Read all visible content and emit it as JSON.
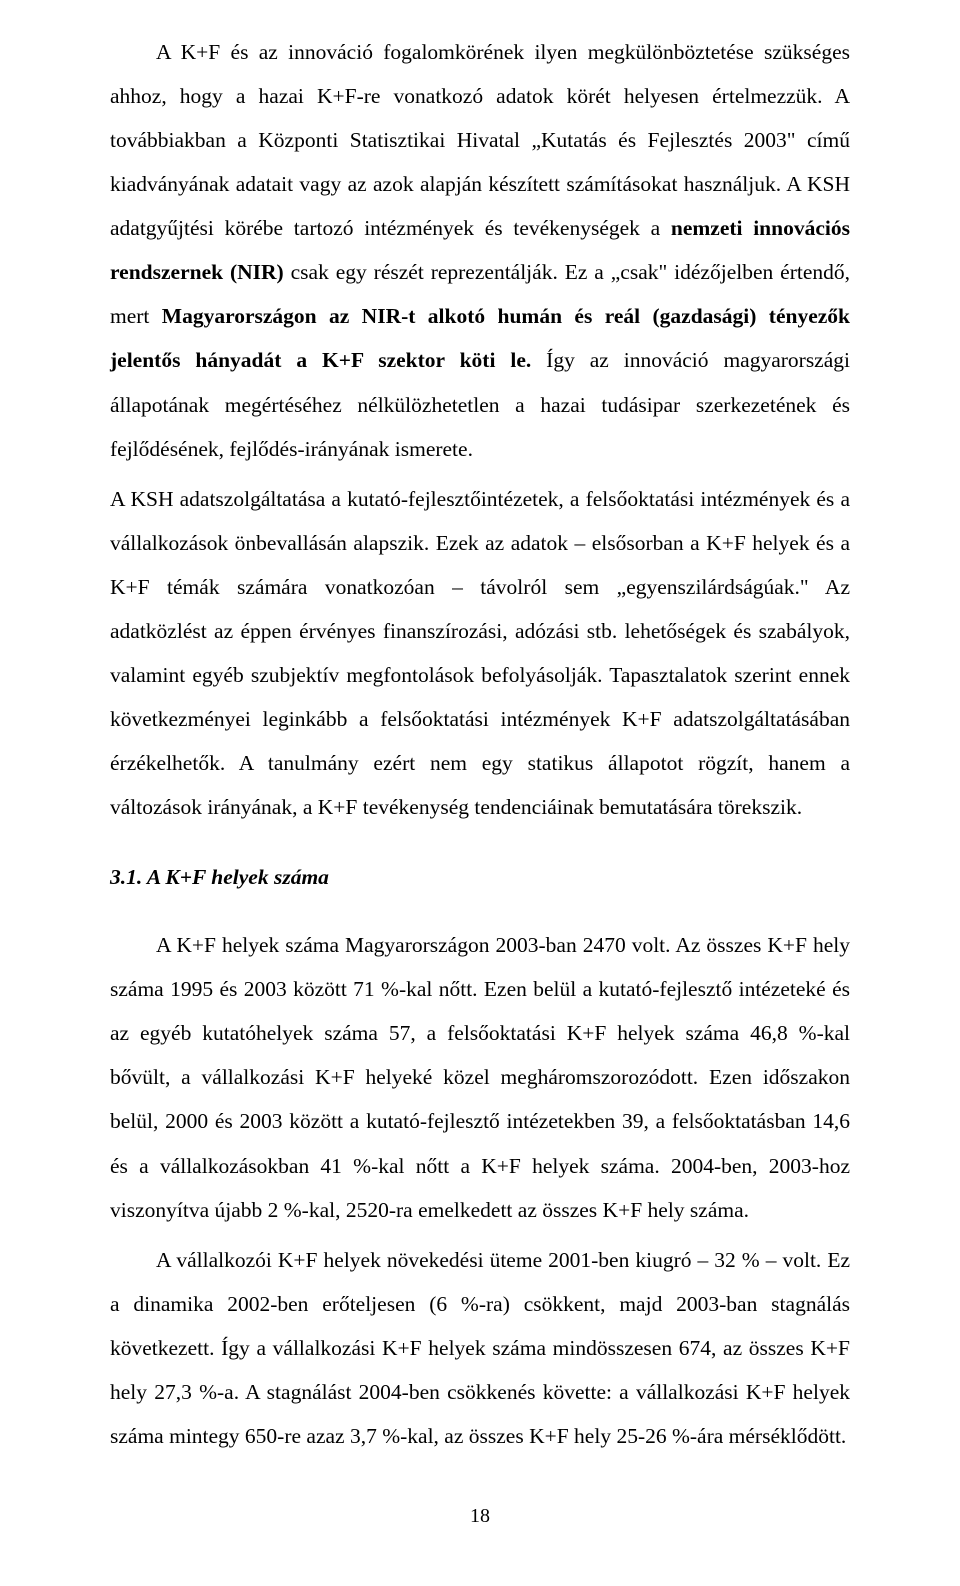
{
  "page_number": "18",
  "paragraphs": {
    "p1_a": "A K+F és az innováció fogalomkörének ilyen megkülönböztetése szükséges ahhoz, hogy a hazai K+F-re vonatkozó adatok körét helyesen értelmezzük. A továbbiakban a Központi Statisztikai Hivatal „Kutatás és Fejlesztés 2003\" című kiadványának adatait vagy az azok alapján készített számításokat használjuk. A KSH adatgyűjtési körébe tartozó intézmények és tevékenységek a ",
    "p1_b": "nemzeti innovációs rendszernek (NIR)",
    "p1_c": " csak egy részét reprezentálják. Ez a „csak\" idézőjelben értendő, mert ",
    "p1_d": "Magyarországon az NIR-t alkotó humán és reál (gazdasági) tényezők jelentős hányadát a K+F szektor köti le.",
    "p1_e": " Így az innováció magyarországi állapotának megértéséhez nélkülözhetetlen a hazai tudásipar szerkezetének és fejlődésének, fejlődés-irányának ismerete.",
    "p2": "A KSH adatszolgáltatása a kutató-fejlesztőintézetek, a felsőoktatási intézmények és a vállalkozások önbevallásán alapszik. Ezek az adatok – elsősorban a K+F helyek és a K+F témák számára vonatkozóan – távolról sem „egyenszilárdságúak.\" Az adatközlést az éppen érvényes finanszírozási, adózási stb. lehetőségek és szabályok, valamint egyéb szubjektív megfontolások befolyásolják. Tapasztalatok szerint ennek következményei leginkább a felsőoktatási intézmények K+F adatszolgáltatásában érzékelhetők. A tanulmány ezért nem egy statikus állapotot rögzít, hanem a változások irányának, a K+F tevékenység tendenciáinak bemutatására törekszik.",
    "heading": "3.1. A K+F helyek száma",
    "p3": "A K+F helyek száma Magyarországon 2003-ban 2470 volt. Az összes K+F hely száma 1995 és 2003 között 71 %-kal nőtt. Ezen belül a kutató-fejlesztő intézeteké és az egyéb kutatóhelyek száma 57, a felsőoktatási K+F helyek száma 46,8 %-kal bővült, a vállalkozási K+F helyeké közel megháromszorozódott. Ezen időszakon belül, 2000 és 2003 között a kutató-fejlesztő intézetekben 39, a felsőoktatásban 14,6 és a vállalkozásokban 41 %-kal nőtt a K+F helyek száma. 2004-ben, 2003-hoz viszonyítva újabb 2 %-kal, 2520-ra emelkedett az összes K+F hely száma.",
    "p4": "A vállalkozói K+F helyek növekedési üteme 2001-ben kiugró – 32 % – volt. Ez a dinamika 2002-ben erőteljesen (6 %-ra) csökkent, majd 2003-ban stagnálás következett. Így a vállalkozási K+F helyek száma mindösszesen 674, az összes K+F hely 27,3 %-a. A stagnálást 2004-ben csökkenés követte: a vállalkozási K+F helyek száma mintegy 650-re azaz 3,7 %-kal, az összes K+F hely 25-26 %-ára mérséklődött."
  }
}
